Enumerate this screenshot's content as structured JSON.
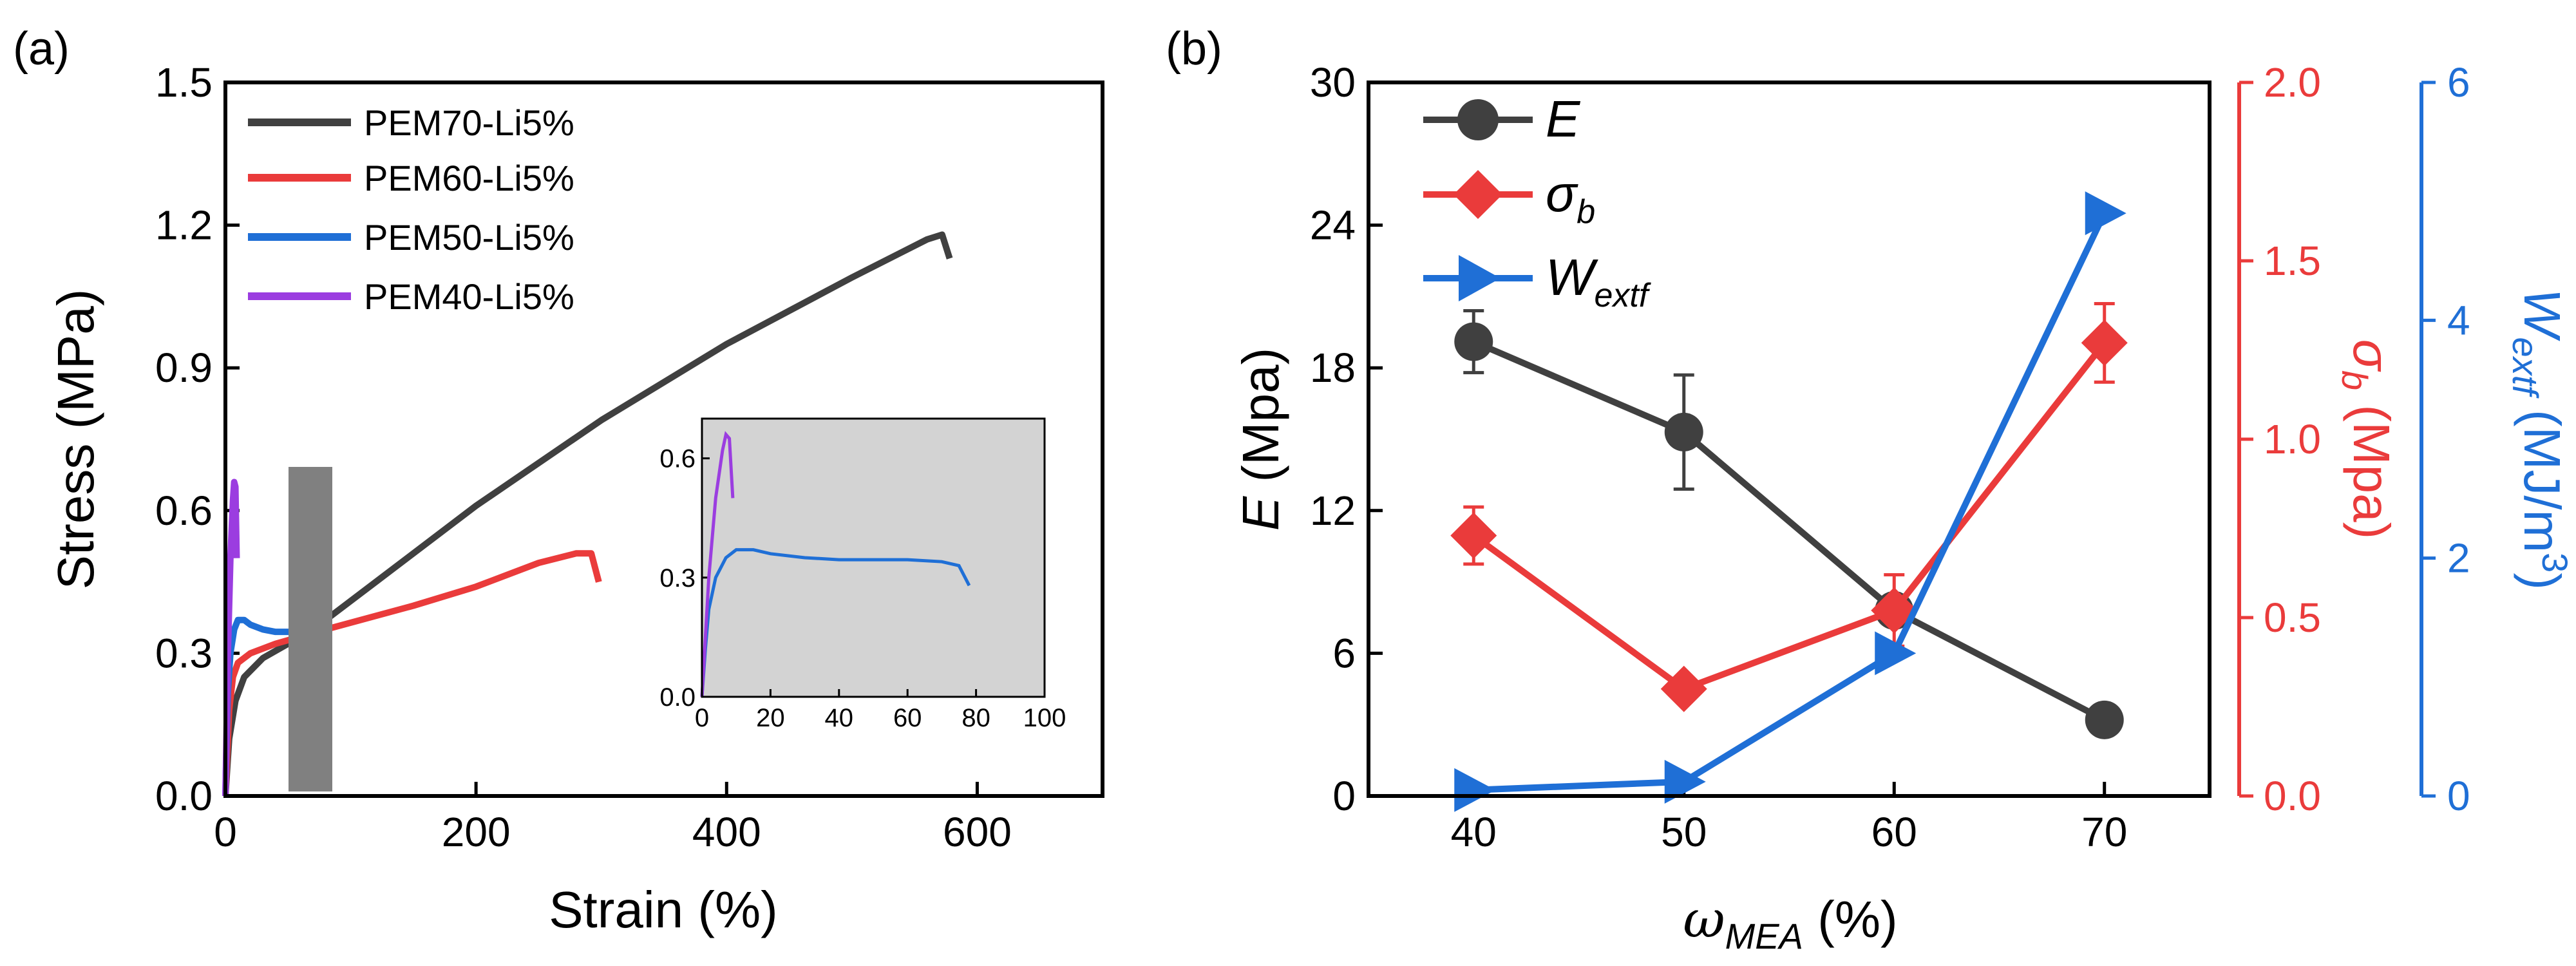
{
  "chart_data": [
    {
      "panel": "(a)",
      "type": "line",
      "xlabel": "Strain (%)",
      "ylabel": "Stress (MPa)",
      "xlim": [
        0,
        700
      ],
      "ylim": [
        0,
        1.5
      ],
      "x_ticks": [
        "0",
        "200",
        "400",
        "600"
      ],
      "y_ticks": [
        "0.0",
        "0.3",
        "0.6",
        "0.9",
        "1.2",
        "1.5"
      ],
      "legend_position": "top-left",
      "series": [
        {
          "name": "PEM70-Li5%",
          "color": "#404040",
          "x": [
            0,
            3,
            8,
            15,
            30,
            50,
            80,
            120,
            200,
            300,
            400,
            500,
            560,
            572,
            578
          ],
          "y": [
            0,
            0.12,
            0.2,
            0.25,
            0.29,
            0.32,
            0.37,
            0.45,
            0.61,
            0.79,
            0.95,
            1.09,
            1.17,
            1.18,
            1.13
          ]
        },
        {
          "name": "PEM60-Li5%",
          "color": "#ea3b3b",
          "x": [
            0,
            3,
            6,
            10,
            20,
            40,
            80,
            150,
            200,
            250,
            280,
            292,
            298
          ],
          "y": [
            0,
            0.18,
            0.25,
            0.28,
            0.3,
            0.32,
            0.35,
            0.4,
            0.44,
            0.49,
            0.51,
            0.51,
            0.45
          ]
        },
        {
          "name": "PEM50-Li5%",
          "color": "#1f6fd6",
          "x": [
            0,
            1,
            2,
            4,
            7,
            10,
            15,
            20,
            30,
            40,
            50,
            60,
            70,
            75,
            78
          ],
          "y": [
            0,
            0.12,
            0.22,
            0.3,
            0.35,
            0.37,
            0.37,
            0.36,
            0.35,
            0.345,
            0.345,
            0.345,
            0.34,
            0.33,
            0.28
          ]
        },
        {
          "name": "PEM40-Li5%",
          "color": "#9b3de0",
          "x": [
            0,
            2,
            4,
            6,
            7,
            8,
            9
          ],
          "y": [
            0,
            0.3,
            0.5,
            0.62,
            0.66,
            0.65,
            0.5
          ]
        }
      ],
      "inset": {
        "xlim": [
          0,
          100
        ],
        "ylim": [
          0,
          0.7
        ],
        "x_ticks": [
          "0",
          "20",
          "40",
          "60",
          "80",
          "100"
        ],
        "y_ticks": [
          "0.0",
          "0.3",
          "0.6"
        ],
        "series": [
          "PEM50-Li5%",
          "PEM40-Li5%"
        ]
      }
    },
    {
      "panel": "(b)",
      "type": "line",
      "xlabel": "ωMEA (%)",
      "x": [
        40,
        50,
        60,
        70
      ],
      "x_ticks": [
        "40",
        "50",
        "60",
        "70"
      ],
      "xlim": [
        35,
        75
      ],
      "legend_position": "top-left",
      "axes": {
        "left": {
          "label": "E (Mpa)",
          "ylim": [
            0,
            30
          ],
          "ticks": [
            "0",
            "6",
            "12",
            "18",
            "24",
            "30"
          ],
          "color": "#000000"
        },
        "right1": {
          "label": "σb (Mpa)",
          "ylim": [
            0,
            2.0
          ],
          "ticks": [
            "0.0",
            "0.5",
            "1.0",
            "1.5",
            "2.0"
          ],
          "color": "#ea3b3b"
        },
        "right2": {
          "label": "Wextf (MJ/m3)",
          "ylim": [
            0,
            6
          ],
          "ticks": [
            "0",
            "2",
            "4",
            "6"
          ],
          "color": "#1f6fd6"
        }
      },
      "series": [
        {
          "name": "E",
          "axis": "left",
          "marker": "circle",
          "color": "#404040",
          "values": [
            19.1,
            15.3,
            7.8,
            3.2
          ],
          "errors": [
            1.3,
            2.4,
            0.5,
            0.3
          ]
        },
        {
          "name": "σb",
          "axis": "right1",
          "marker": "diamond",
          "color": "#ea3b3b",
          "values": [
            0.73,
            0.3,
            0.52,
            1.27
          ],
          "errors": [
            0.08,
            0.03,
            0.1,
            0.11
          ]
        },
        {
          "name": "Wextf",
          "axis": "right2",
          "marker": "triangle-right",
          "color": "#1f6fd6",
          "values": [
            0.05,
            0.12,
            1.2,
            4.9
          ],
          "errors": [
            0,
            0,
            0,
            0
          ]
        }
      ]
    }
  ],
  "labels": {
    "panel_a": "(a)",
    "panel_b": "(b)",
    "a_xlabel": "Strain (%)",
    "a_ylabel": "Stress (MPa)",
    "legend_a": [
      "PEM70-Li5%",
      "PEM60-Li5%",
      "PEM50-Li5%",
      "PEM40-Li5%"
    ],
    "b_left_main": "E",
    "b_left_unit": " (Mpa)",
    "b_right1_main": "σ",
    "b_right1_sub": "b",
    "b_right1_unit": " (Mpa)",
    "b_right2_main": "W",
    "b_right2_sub": "extf",
    "b_right2_unit": " (MJ/m",
    "b_right2_sup": "3",
    "b_right2_close": ")",
    "b_x_main": "ω",
    "b_x_sub": "MEA",
    "b_x_unit": " (%)",
    "legend_b": [
      {
        "main": "E",
        "sub": ""
      },
      {
        "main": "σ",
        "sub": "b"
      },
      {
        "main": "W",
        "sub": "extf"
      }
    ]
  }
}
